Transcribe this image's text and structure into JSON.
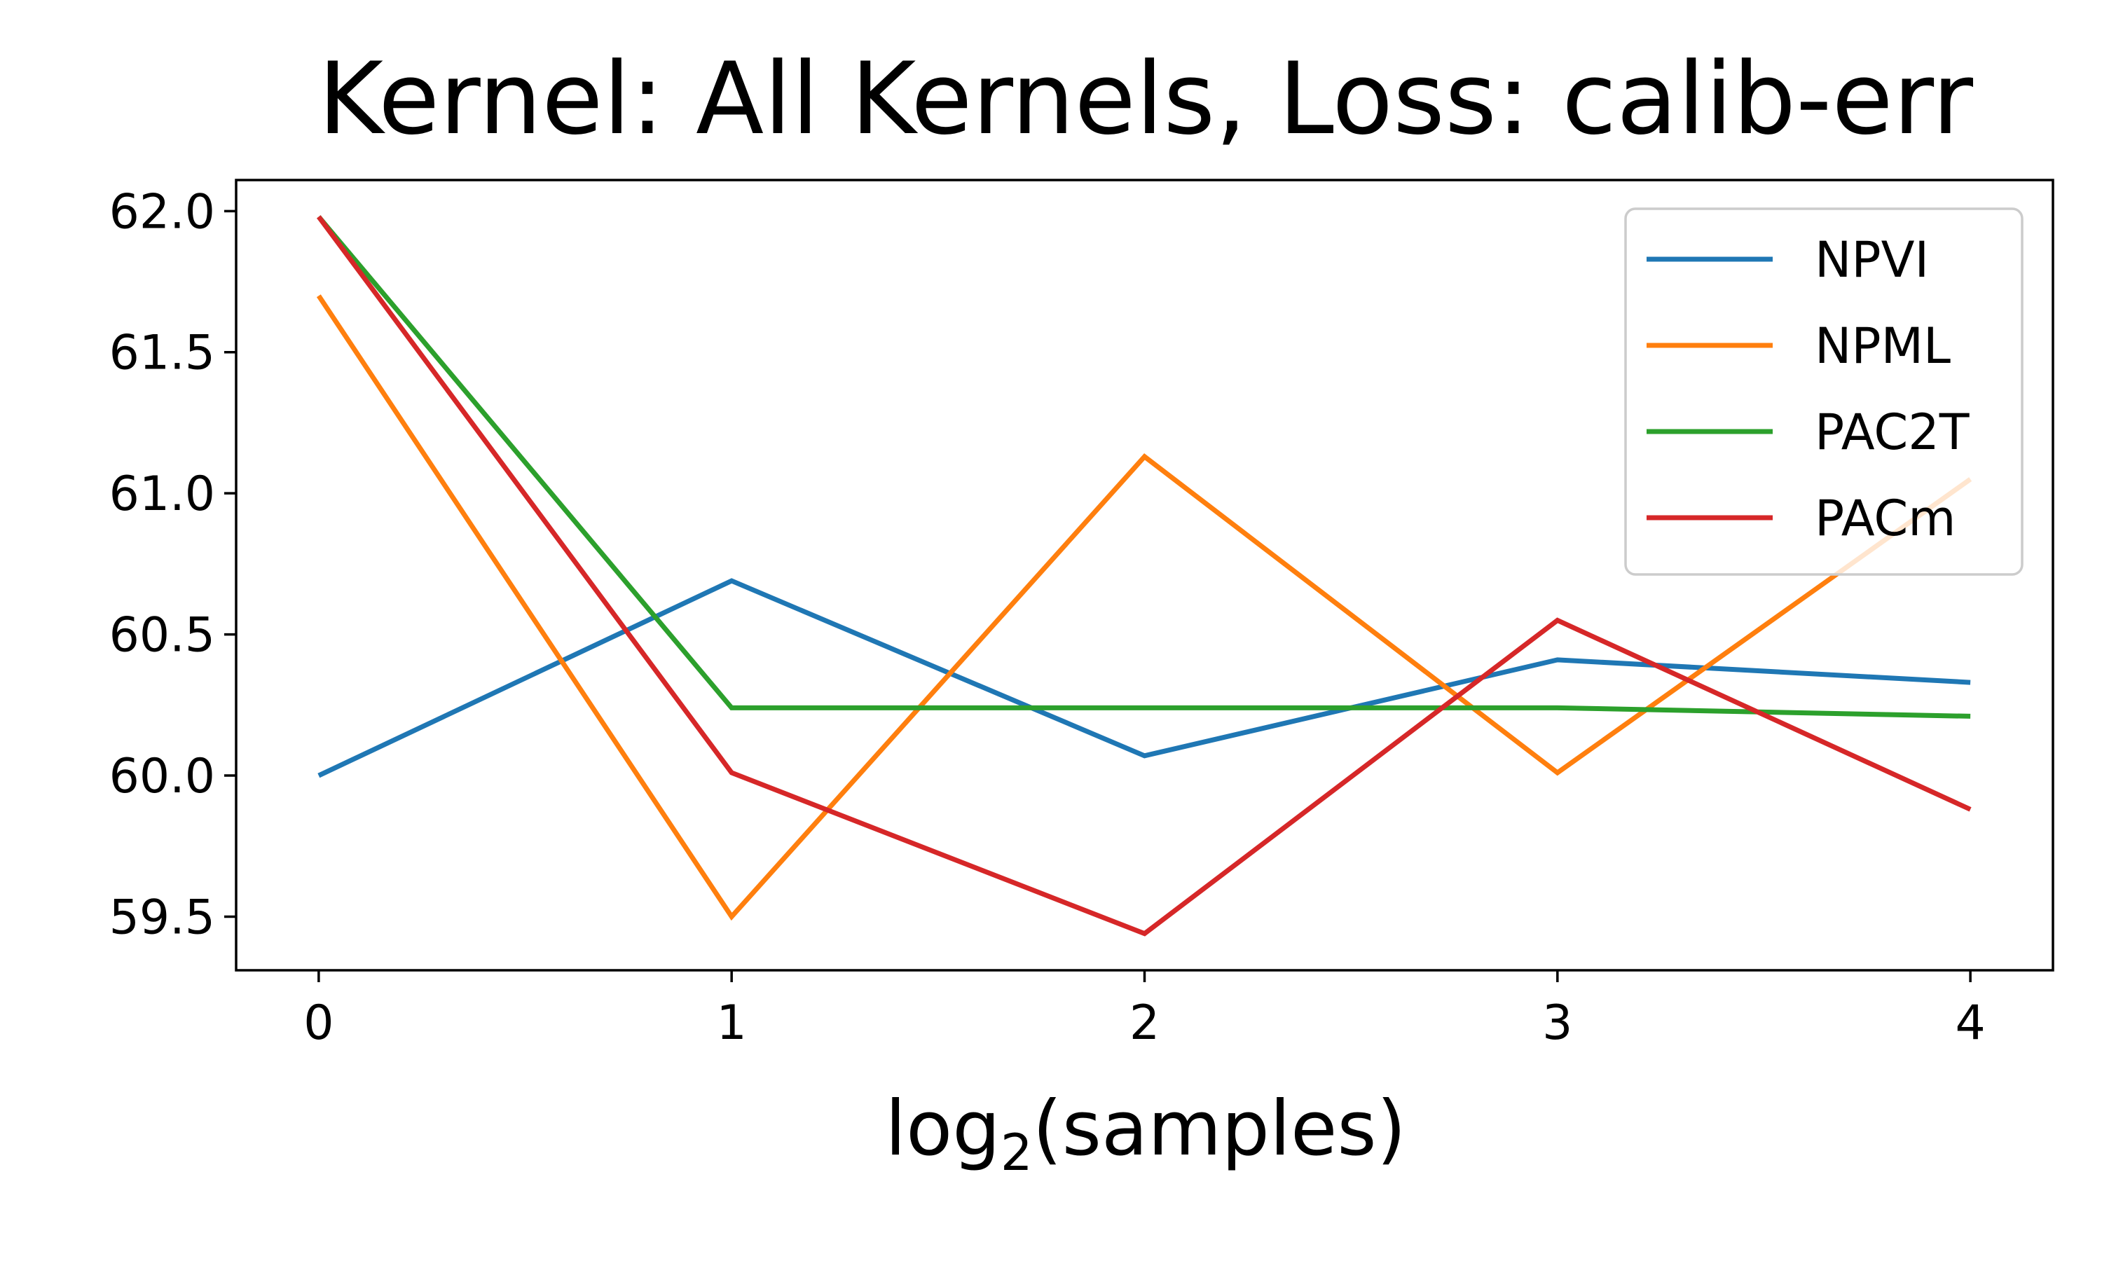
{
  "chart_data": {
    "type": "line",
    "title": "Kernel: All Kernels, Loss: calib-err",
    "xlabel": {
      "prefix": "log",
      "subscript": "2",
      "suffix": "(samples)"
    },
    "ylabel": "",
    "x": [
      0,
      1,
      2,
      3,
      4
    ],
    "xticks": [
      "0",
      "1",
      "2",
      "3",
      "4"
    ],
    "yticks": [
      59.5,
      60.0,
      60.5,
      61.0,
      61.5,
      62.0
    ],
    "ytick_labels": [
      "59.5",
      "60.0",
      "60.5",
      "61.0",
      "61.5",
      "62.0"
    ],
    "xlim": [
      -0.2,
      4.2
    ],
    "ylim": [
      59.31,
      62.11
    ],
    "grid": false,
    "legend_position": "upper right",
    "series": [
      {
        "name": "NPVI",
        "color": "#1f77b4",
        "values": [
          60.0,
          60.69,
          60.07,
          60.41,
          60.33
        ]
      },
      {
        "name": "NPML",
        "color": "#ff7f0e",
        "values": [
          61.7,
          59.5,
          61.13,
          60.01,
          61.05
        ]
      },
      {
        "name": "PAC2T",
        "color": "#2ca02c",
        "values": [
          61.98,
          60.24,
          60.24,
          60.24,
          60.21
        ]
      },
      {
        "name": "PACm",
        "color": "#d62728",
        "values": [
          61.98,
          60.01,
          59.44,
          60.55,
          59.88
        ]
      }
    ]
  }
}
